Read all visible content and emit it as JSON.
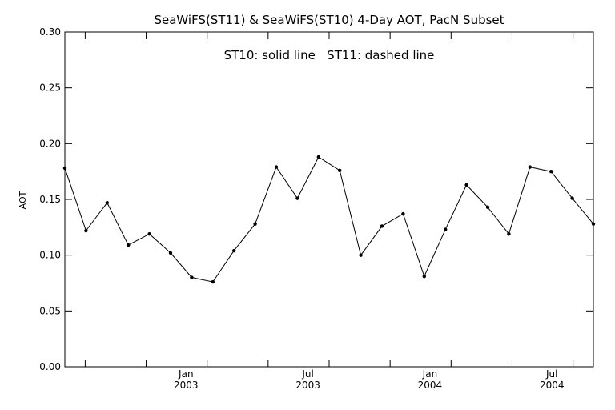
{
  "chart_data": {
    "type": "line",
    "title": "SeaWiFS(ST11) & SeaWiFS(ST10) 4-Day AOT, PacN Subset",
    "annotation": "ST10: solid line   ST11: dashed line",
    "xlabel": "",
    "ylabel": "AOT",
    "ylim": [
      0.0,
      0.3
    ],
    "yticks": [
      "0.00",
      "0.05",
      "0.10",
      "0.15",
      "0.20",
      "0.25",
      "0.30"
    ],
    "xticks": [
      {
        "month": "Jan",
        "year": "2003"
      },
      {
        "month": "Jul",
        "year": "2003"
      },
      {
        "month": "Jan",
        "year": "2004"
      },
      {
        "month": "Jul",
        "year": "2004"
      }
    ],
    "grid": false,
    "legend": "none",
    "line_color": "#000000",
    "series": [
      {
        "values": [
          0.178,
          0.122,
          0.147,
          0.109,
          0.119,
          0.102,
          0.08,
          0.076,
          0.104,
          0.128,
          0.179,
          0.151,
          0.188,
          0.176,
          0.1,
          0.126,
          0.137,
          0.081,
          0.123,
          0.163,
          0.143,
          0.119,
          0.179,
          0.175,
          0.151,
          0.128
        ]
      }
    ]
  }
}
